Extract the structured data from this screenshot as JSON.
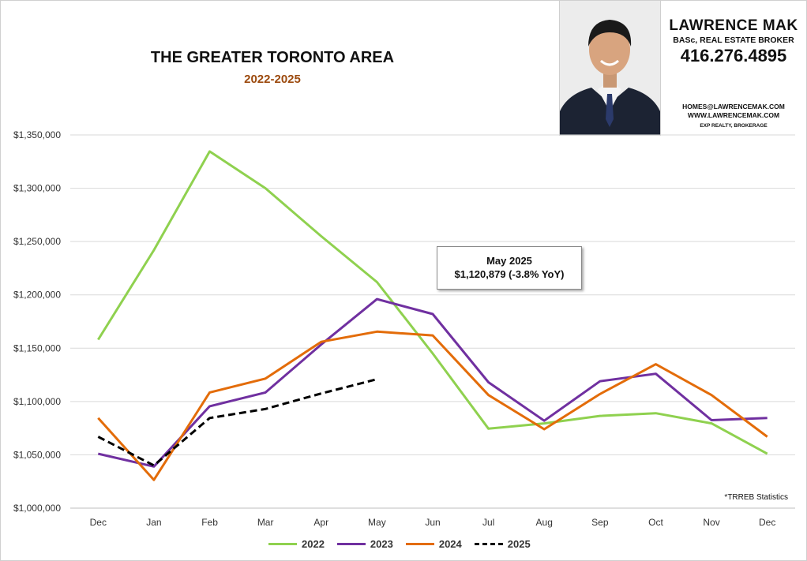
{
  "header": {
    "title": "THE GREATER TORONTO AREA",
    "subtitle": "2022-2025"
  },
  "agent": {
    "name": "LAWRENCE MAK",
    "credentials": "BASc, REAL ESTATE BROKER",
    "phone": "416.276.4895",
    "email": "HOMES@LAWRENCEMAK.COM",
    "website": "WWW.LAWRENCEMAK.COM",
    "brokerage": "EXP REALTY, BROKERAGE"
  },
  "annotation": {
    "line1": "May 2025",
    "line2": "$1,120,879 (-3.8% YoY)"
  },
  "source_note": "*TRREB Statistics",
  "chart_data": {
    "type": "line",
    "categories": [
      "Dec",
      "Jan",
      "Feb",
      "Mar",
      "Apr",
      "May",
      "Jun",
      "Jul",
      "Aug",
      "Sep",
      "Oct",
      "Nov",
      "Dec"
    ],
    "ylim": [
      1000000,
      1350000
    ],
    "yticks": [
      "$1,000,000",
      "$1,050,000",
      "$1,100,000",
      "$1,150,000",
      "$1,200,000",
      "$1,250,000",
      "$1,300,000",
      "$1,350,000"
    ],
    "grid": true,
    "legend_position": "bottom",
    "series": [
      {
        "name": "2022",
        "color": "#8fd14f",
        "dash": false,
        "values": [
          1158000,
          1242000,
          1334500,
          1300000,
          1255000,
          1212000,
          1145000,
          1074500,
          1079500,
          1086500,
          1089000,
          1079500,
          1051000
        ]
      },
      {
        "name": "2023",
        "color": "#7030a0",
        "dash": false,
        "values": [
          1051000,
          1039000,
          1095500,
          1108500,
          1153500,
          1196000,
          1182000,
          1118000,
          1082000,
          1119000,
          1126000,
          1082500,
          1084500
        ]
      },
      {
        "name": "2024",
        "color": "#e36c09",
        "dash": false,
        "values": [
          1084500,
          1026500,
          1108500,
          1121500,
          1156000,
          1165500,
          1162000,
          1106000,
          1074000,
          1107000,
          1135000,
          1106000,
          1067000
        ]
      },
      {
        "name": "2025",
        "color": "#000000",
        "dash": true,
        "values": [
          1067000,
          1040000,
          1084500,
          1093000,
          1107500,
          1120879,
          null,
          null,
          null,
          null,
          null,
          null,
          null
        ]
      }
    ]
  }
}
